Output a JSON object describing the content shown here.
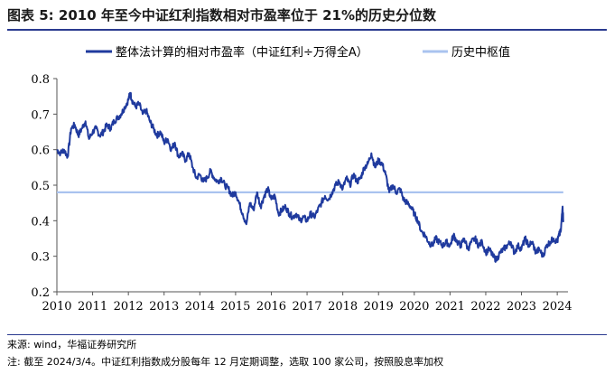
{
  "title": "图表 5:  2010 年至今中证红利指数相对市盈率位于 21%的历史分位数",
  "source": "来源:  wind，华福证券研究所",
  "note": "注:  截至 2024/3/4。中证红利指数成分股每年 12 月定期调整，选取 100 家公司，按照股息率加权",
  "colors": {
    "series": "#1f3a9e",
    "median": "#a9c3ef",
    "rule": "#2a3a8f"
  },
  "chart_data": {
    "type": "line",
    "ylim": [
      0.2,
      0.8
    ],
    "yticks": [
      "0.2",
      "0.3",
      "0.4",
      "0.5",
      "0.6",
      "0.7",
      "0.8"
    ],
    "xlim": [
      2010,
      2024.3
    ],
    "xticks": [
      "2010",
      "2011",
      "2012",
      "2013",
      "2014",
      "2015",
      "2016",
      "2017",
      "2018",
      "2019",
      "2020",
      "2021",
      "2022",
      "2023",
      "2024"
    ],
    "legend_position": "top",
    "series": [
      {
        "name": "整体法计算的相对市盈率（中证红利÷万得全A）",
        "x": [
          2010.0,
          2010.1,
          2010.2,
          2010.3,
          2010.4,
          2010.5,
          2010.6,
          2010.7,
          2010.8,
          2010.9,
          2011.0,
          2011.1,
          2011.2,
          2011.3,
          2011.4,
          2011.5,
          2011.6,
          2011.7,
          2011.8,
          2011.9,
          2012.0,
          2012.05,
          2012.1,
          2012.2,
          2012.3,
          2012.4,
          2012.5,
          2012.6,
          2012.7,
          2012.8,
          2012.9,
          2013.0,
          2013.1,
          2013.2,
          2013.3,
          2013.4,
          2013.5,
          2013.6,
          2013.7,
          2013.8,
          2013.9,
          2014.0,
          2014.1,
          2014.2,
          2014.3,
          2014.4,
          2014.5,
          2014.6,
          2014.7,
          2014.8,
          2014.9,
          2015.0,
          2015.1,
          2015.2,
          2015.3,
          2015.4,
          2015.5,
          2015.6,
          2015.7,
          2015.8,
          2015.9,
          2016.0,
          2016.1,
          2016.2,
          2016.3,
          2016.4,
          2016.5,
          2016.6,
          2016.7,
          2016.8,
          2016.9,
          2017.0,
          2017.1,
          2017.2,
          2017.3,
          2017.4,
          2017.5,
          2017.6,
          2017.7,
          2017.8,
          2017.9,
          2018.0,
          2018.1,
          2018.2,
          2018.3,
          2018.4,
          2018.5,
          2018.6,
          2018.7,
          2018.8,
          2018.9,
          2019.0,
          2019.1,
          2019.2,
          2019.3,
          2019.4,
          2019.5,
          2019.6,
          2019.7,
          2019.8,
          2019.9,
          2020.0,
          2020.1,
          2020.2,
          2020.3,
          2020.4,
          2020.5,
          2020.6,
          2020.7,
          2020.8,
          2020.9,
          2021.0,
          2021.1,
          2021.2,
          2021.3,
          2021.4,
          2021.5,
          2021.6,
          2021.7,
          2021.8,
          2021.9,
          2022.0,
          2022.1,
          2022.2,
          2022.3,
          2022.4,
          2022.5,
          2022.6,
          2022.7,
          2022.8,
          2022.9,
          2023.0,
          2023.1,
          2023.2,
          2023.3,
          2023.4,
          2023.5,
          2023.6,
          2023.7,
          2023.8,
          2023.9,
          2024.0,
          2024.05,
          2024.1,
          2024.15,
          2024.17
        ],
        "values": [
          0.6,
          0.59,
          0.6,
          0.58,
          0.66,
          0.67,
          0.64,
          0.66,
          0.68,
          0.63,
          0.65,
          0.66,
          0.64,
          0.65,
          0.67,
          0.66,
          0.68,
          0.69,
          0.7,
          0.72,
          0.74,
          0.76,
          0.74,
          0.72,
          0.73,
          0.7,
          0.71,
          0.68,
          0.66,
          0.64,
          0.65,
          0.62,
          0.63,
          0.6,
          0.62,
          0.58,
          0.59,
          0.57,
          0.59,
          0.55,
          0.52,
          0.53,
          0.51,
          0.52,
          0.54,
          0.52,
          0.51,
          0.52,
          0.5,
          0.49,
          0.47,
          0.48,
          0.45,
          0.42,
          0.39,
          0.45,
          0.43,
          0.48,
          0.44,
          0.47,
          0.49,
          0.46,
          0.47,
          0.42,
          0.43,
          0.44,
          0.42,
          0.41,
          0.42,
          0.4,
          0.41,
          0.4,
          0.42,
          0.41,
          0.43,
          0.45,
          0.47,
          0.46,
          0.48,
          0.5,
          0.51,
          0.49,
          0.52,
          0.5,
          0.53,
          0.51,
          0.52,
          0.55,
          0.56,
          0.59,
          0.55,
          0.57,
          0.56,
          0.53,
          0.48,
          0.5,
          0.48,
          0.49,
          0.46,
          0.45,
          0.44,
          0.42,
          0.4,
          0.37,
          0.36,
          0.34,
          0.33,
          0.35,
          0.34,
          0.33,
          0.34,
          0.33,
          0.36,
          0.34,
          0.33,
          0.35,
          0.32,
          0.34,
          0.35,
          0.33,
          0.34,
          0.31,
          0.32,
          0.3,
          0.29,
          0.31,
          0.32,
          0.33,
          0.34,
          0.31,
          0.33,
          0.32,
          0.35,
          0.33,
          0.34,
          0.31,
          0.32,
          0.3,
          0.33,
          0.34,
          0.35,
          0.34,
          0.36,
          0.37,
          0.44,
          0.4
        ]
      },
      {
        "name": "历史中枢值",
        "x": [
          2010.0,
          2024.17
        ],
        "values": [
          0.48,
          0.48
        ]
      }
    ]
  }
}
